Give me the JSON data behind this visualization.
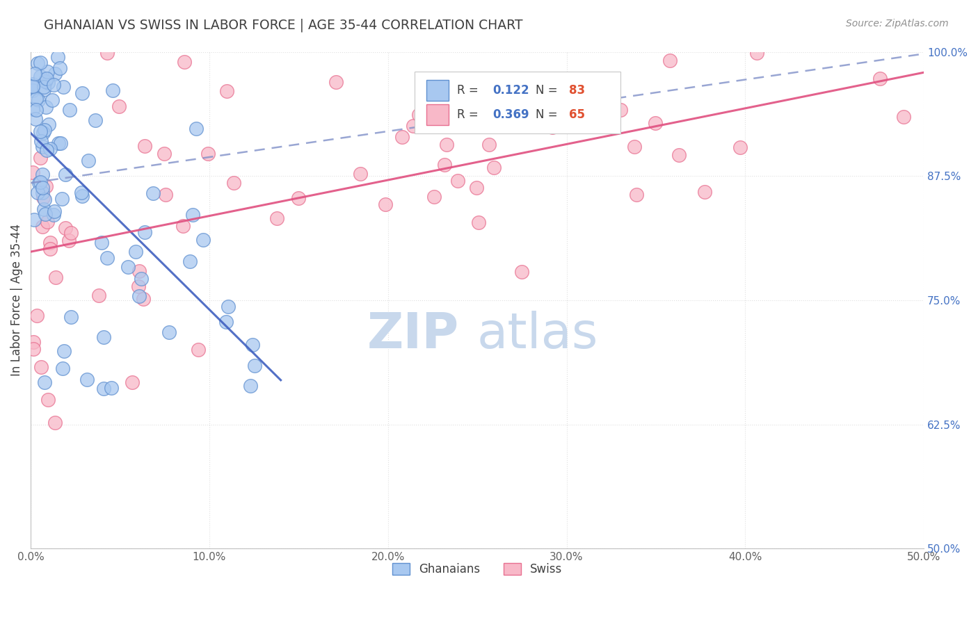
{
  "title": "GHANAIAN VS SWISS IN LABOR FORCE | AGE 35-44 CORRELATION CHART",
  "source": "Source: ZipAtlas.com",
  "ylabel": "In Labor Force | Age 35-44",
  "xlim": [
    0.0,
    0.5
  ],
  "ylim": [
    0.5,
    1.0
  ],
  "yticks": [
    0.5,
    0.625,
    0.75,
    0.875,
    1.0
  ],
  "ytick_labels": [
    "50.0%",
    "62.5%",
    "75.0%",
    "87.5%",
    "100.0%"
  ],
  "xticks": [
    0.0,
    0.1,
    0.2,
    0.3,
    0.4,
    0.5
  ],
  "xtick_labels": [
    "0.0%",
    "10.0%",
    "20.0%",
    "30.0%",
    "40.0%",
    "50.0%"
  ],
  "ghanaian_R": 0.122,
  "ghanaian_N": 83,
  "swiss_R": 0.369,
  "swiss_N": 65,
  "blue_face": "#A8C8F0",
  "blue_edge": "#6090D0",
  "pink_face": "#F8B8C8",
  "pink_edge": "#E87090",
  "blue_reg_color": "#4060C0",
  "pink_reg_color": "#E05080",
  "blue_dash_color": "#8090C8",
  "title_color": "#404040",
  "source_color": "#909090",
  "grid_color": "#E0E0E0",
  "ytick_color": "#4472C4",
  "xtick_color": "#606060",
  "background_color": "#FFFFFF",
  "watermark": "ZIPatlas",
  "watermark_zip_color": "#C8D8EC",
  "watermark_atlas_color": "#C8D8EC",
  "legend_R_color": "#4472C4",
  "legend_N_color": "#E05030"
}
